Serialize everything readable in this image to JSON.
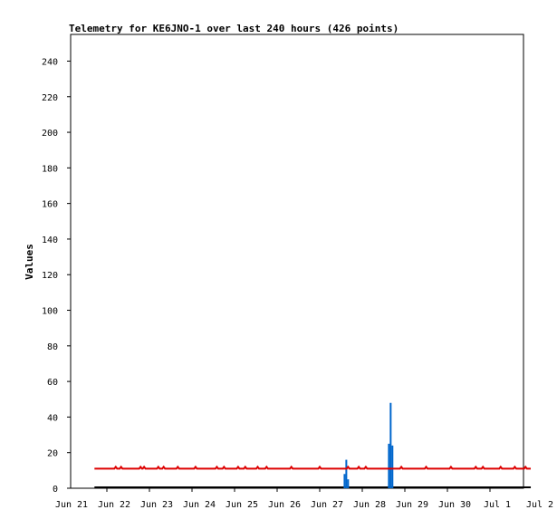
{
  "chart_data": {
    "type": "line",
    "title": "Telemetry for KE6JNO-1 over last 240 hours (426 points)",
    "xlabel": "",
    "ylabel": "Values",
    "ylim": [
      0,
      255
    ],
    "yticks": [
      0,
      20,
      40,
      60,
      80,
      100,
      120,
      140,
      160,
      180,
      200,
      220,
      240
    ],
    "xticks": [
      "Jun 21",
      "Jun 22",
      "Jun 23",
      "Jun 24",
      "Jun 25",
      "Jun 26",
      "Jun 27",
      "Jun 28",
      "Jun 29",
      "Jun 30",
      "Jul 1",
      "Jul 2"
    ],
    "grid": false,
    "legend": "none",
    "series": [
      {
        "color": "#dd0000",
        "x_start": "Jun 21 17:00",
        "x_end": "Jul 1 23:00",
        "baseline": 11,
        "bump_value": 12,
        "bumps": [
          "Jun 22 05:00",
          "Jun 22 08:00",
          "Jun 22 19:00",
          "Jun 22 21:00",
          "Jun 23 05:00",
          "Jun 23 08:00",
          "Jun 23 16:00",
          "Jun 24 02:00",
          "Jun 24 14:00",
          "Jun 24 18:00",
          "Jun 25 02:00",
          "Jun 25 06:00",
          "Jun 25 13:00",
          "Jun 25 18:00",
          "Jun 26 08:00",
          "Jun 27 00:00",
          "Jun 27 16:00",
          "Jun 27 22:00",
          "Jun 28 02:00",
          "Jun 28 22:00",
          "Jun 29 12:00",
          "Jun 30 02:00",
          "Jun 30 16:00",
          "Jun 30 20:00",
          "Jul 1 06:00",
          "Jul 1 14:00",
          "Jul 1 20:00"
        ]
      },
      {
        "color": "#0066cc",
        "baseline": 0,
        "spikes": [
          {
            "x": "Jun 27 14:00",
            "y": 8
          },
          {
            "x": "Jun 27 15:00",
            "y": 16
          },
          {
            "x": "Jun 27 16:00",
            "y": 5
          },
          {
            "x": "Jun 28 15:00",
            "y": 25
          },
          {
            "x": "Jun 28 16:00",
            "y": 48
          },
          {
            "x": "Jun 28 17:00",
            "y": 24
          }
        ]
      },
      {
        "color": "#000000",
        "x_start": "Jun 21 17:00",
        "x_end": "Jul 1 23:00",
        "baseline": 0
      }
    ]
  }
}
